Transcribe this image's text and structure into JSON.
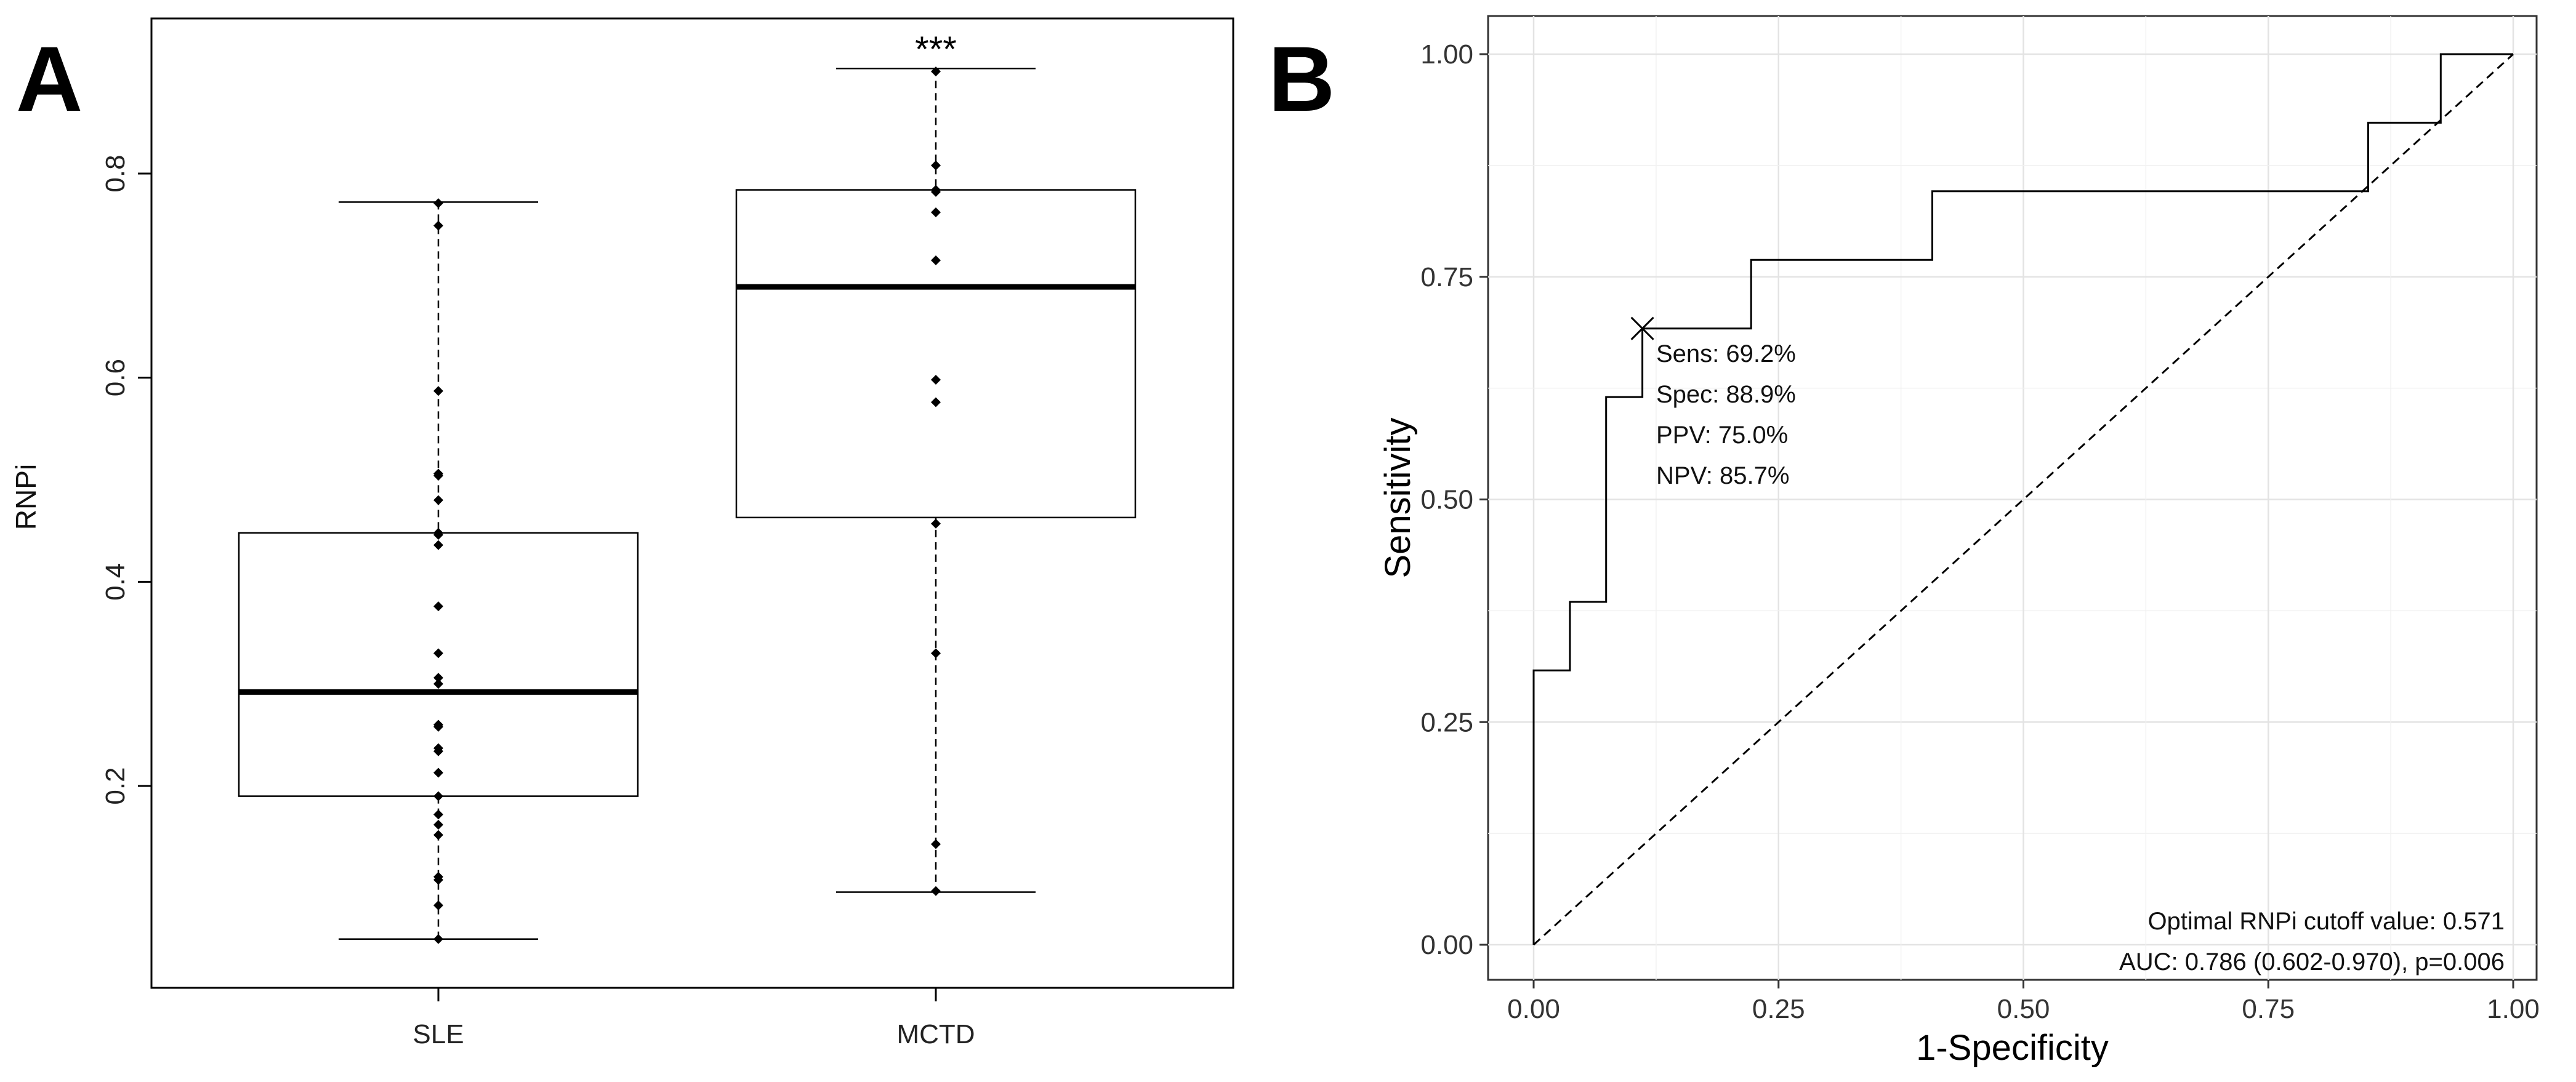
{
  "panel_a": {
    "letter": "A"
  },
  "panel_b": {
    "letter": "B"
  },
  "chart_data": [
    {
      "type": "box",
      "title": "",
      "xlabel": "",
      "ylabel": "RNPi",
      "ylim": [
        0.0,
        0.95
      ],
      "yticks": [
        "0.2",
        "0.4",
        "0.6",
        "0.8"
      ],
      "significance": "***",
      "groups": [
        {
          "name": "SLE",
          "whisker_low": 0.05,
          "q1": 0.19,
          "median": 0.292,
          "q3": 0.448,
          "whisker_high": 0.772,
          "points": [
            0.771,
            0.749,
            0.587,
            0.506,
            0.504,
            0.48,
            0.448,
            0.446,
            0.436,
            0.376,
            0.33,
            0.306,
            0.3,
            0.26,
            0.258,
            0.237,
            0.234,
            0.213,
            0.19,
            0.172,
            0.162,
            0.152,
            0.111,
            0.108,
            0.083,
            0.05
          ]
        },
        {
          "name": "MCTD",
          "whisker_low": 0.096,
          "q1": 0.463,
          "median": 0.689,
          "q3": 0.784,
          "whisker_high": 0.903,
          "points": [
            0.9,
            0.808,
            0.784,
            0.782,
            0.762,
            0.715,
            0.598,
            0.576,
            0.457,
            0.33,
            0.143,
            0.097
          ]
        }
      ]
    },
    {
      "type": "line",
      "title": "",
      "xlabel": "1-Specificity",
      "ylabel": "Sensitivity",
      "xlim": [
        0,
        1
      ],
      "ylim": [
        0,
        1
      ],
      "xticks": [
        "0.00",
        "0.25",
        "0.50",
        "0.75",
        "1.00"
      ],
      "yticks": [
        "0.00",
        "0.25",
        "0.50",
        "0.75",
        "1.00"
      ],
      "series": [
        {
          "name": "ROC",
          "x": [
            0,
            0,
            0.037,
            0.037,
            0.074,
            0.074,
            0.111,
            0.111,
            0.222,
            0.222,
            0.407,
            0.407,
            0.852,
            0.852,
            0.926,
            0.926,
            1.0
          ],
          "y": [
            0,
            0.308,
            0.308,
            0.385,
            0.385,
            0.615,
            0.615,
            0.692,
            0.692,
            0.769,
            0.769,
            0.846,
            0.846,
            0.923,
            0.923,
            1.0,
            1.0
          ]
        },
        {
          "name": "Reference",
          "x": [
            0,
            1
          ],
          "y": [
            0,
            1
          ]
        }
      ],
      "optimal_point": {
        "x": 0.111,
        "y": 0.692
      },
      "annotations": [
        "Sens: 69.2%",
        "Spec: 88.9%",
        "PPV: 75.0%",
        "NPV: 85.7%"
      ],
      "footnotes": [
        "Optimal RNPi cutoff value: 0.571",
        "AUC: 0.786 (0.602-0.970), p=0.006"
      ]
    }
  ]
}
